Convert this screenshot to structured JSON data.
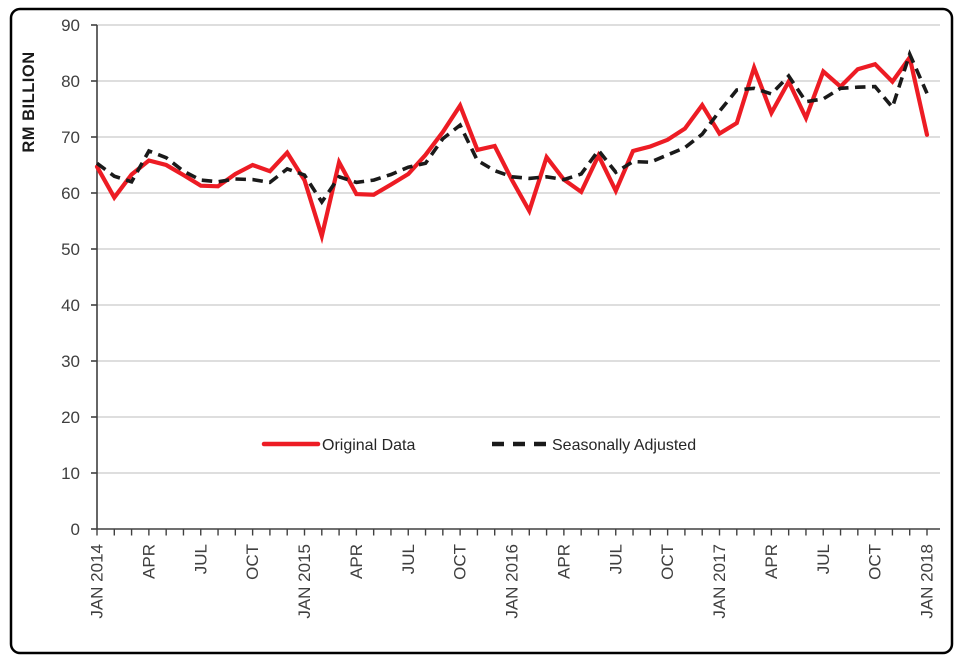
{
  "page": {
    "background": "#ffffff",
    "frame_color": "#000000",
    "plot_background": "#ffffff",
    "gridline_color": "#c9c9c9",
    "axis_color": "#404040",
    "tick_label_color": "#3f3f3f"
  },
  "chart_data": {
    "type": "line",
    "title": "",
    "ylabel": "RM BILLION",
    "xlabel": "",
    "ylim": [
      0,
      90
    ],
    "y_ticks": [
      0,
      10,
      20,
      30,
      40,
      50,
      60,
      70,
      80,
      90
    ],
    "grid": "horizontal",
    "legend_position": "inside-bottom",
    "x_tick_every_months": 3,
    "x_tick_labels": [
      "JAN 2014",
      "APR",
      "JUL",
      "OCT",
      "JAN 2015",
      "APR",
      "JUL",
      "OCT",
      "JAN 2016",
      "APR",
      "JUL",
      "OCT",
      "JAN 2017",
      "APR",
      "JUL",
      "OCT",
      "JAN 2018"
    ],
    "months": [
      "2014-01",
      "2014-02",
      "2014-03",
      "2014-04",
      "2014-05",
      "2014-06",
      "2014-07",
      "2014-08",
      "2014-09",
      "2014-10",
      "2014-11",
      "2014-12",
      "2015-01",
      "2015-02",
      "2015-03",
      "2015-04",
      "2015-05",
      "2015-06",
      "2015-07",
      "2015-08",
      "2015-09",
      "2015-10",
      "2015-11",
      "2015-12",
      "2016-01",
      "2016-02",
      "2016-03",
      "2016-04",
      "2016-05",
      "2016-06",
      "2016-07",
      "2016-08",
      "2016-09",
      "2016-10",
      "2016-11",
      "2016-12",
      "2017-01",
      "2017-02",
      "2017-03",
      "2017-04",
      "2017-05",
      "2017-06",
      "2017-07",
      "2017-08",
      "2017-09",
      "2017-10",
      "2017-11",
      "2017-12",
      "2018-01"
    ],
    "series": [
      {
        "name": "Original Data",
        "color": "#ed1c24",
        "style": "solid",
        "values": [
          64.7,
          59.2,
          63.3,
          65.8,
          65,
          63.2,
          61.3,
          61.2,
          63.4,
          65,
          63.9,
          67.2,
          62.3,
          52.3,
          65.5,
          59.8,
          59.7,
          61.5,
          63.4,
          66.8,
          70.9,
          75.6,
          67.7,
          68.4,
          62.3,
          56.8,
          66.4,
          62.4,
          60.2,
          66.7,
          60.4,
          67.5,
          68.3,
          69.5,
          71.5,
          75.7,
          70.6,
          72.5,
          82.4,
          74.3,
          79.9,
          73.4,
          81.7,
          79,
          82.1,
          83,
          79.9,
          84.2,
          70.4
        ]
      },
      {
        "name": "Seasonally Adjusted",
        "color": "#1a1a1a",
        "style": "dashed",
        "values": [
          65.3,
          63,
          62,
          67.5,
          66.3,
          63.9,
          62.3,
          62,
          62.5,
          62.4,
          61.9,
          64.3,
          63.2,
          58.4,
          62.9,
          61.9,
          62.3,
          63.3,
          64.6,
          65.3,
          69.7,
          72.1,
          65.8,
          64,
          62.9,
          62.6,
          62.9,
          62.4,
          63.4,
          67.6,
          63.7,
          65.6,
          65.5,
          66.8,
          68.1,
          70.5,
          74.6,
          78.4,
          78.7,
          77.7,
          80.9,
          76.3,
          76.8,
          78.7,
          78.9,
          79,
          75.3,
          84.8,
          77.8
        ]
      }
    ]
  }
}
